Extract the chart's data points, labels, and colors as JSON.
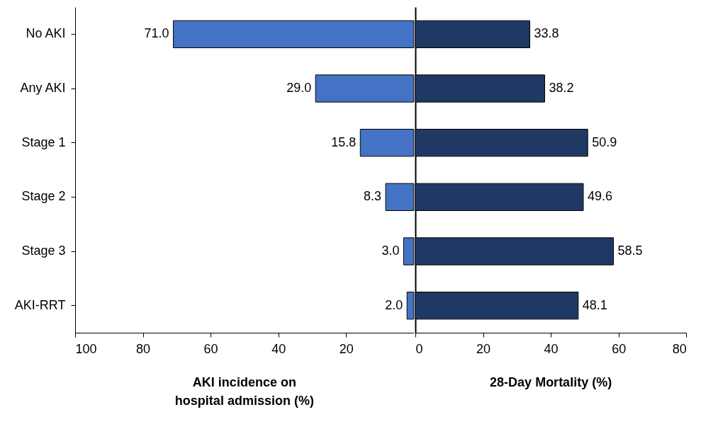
{
  "chart_data": [
    {
      "type": "bar",
      "orientation": "horizontal",
      "xlabel": "AKI incidence on hospital admission (%)",
      "categories": [
        "No AKI",
        "Any AKI",
        "Stage 1",
        "Stage 2",
        "Stage 3",
        "AKI-RRT"
      ],
      "series": [
        {
          "color": "#4472c4",
          "values": [
            71.0,
            29.0,
            15.8,
            8.3,
            3.0,
            2.0
          ],
          "value_labels": [
            "71.0",
            "29.0",
            "15.8",
            "8.3",
            "3.0",
            "2.0"
          ]
        }
      ],
      "xlim": [
        100,
        0
      ],
      "xticks": [
        100,
        80,
        60,
        40,
        20
      ],
      "grid": false
    },
    {
      "type": "bar",
      "orientation": "horizontal",
      "xlabel": "28-Day Mortality (%)",
      "categories": [
        null,
        null,
        null,
        null,
        null,
        null
      ],
      "series": [
        {
          "color": "#203864",
          "values": [
            33.8,
            38.2,
            50.9,
            49.6,
            58.5,
            48.1
          ],
          "value_labels": [
            "33.8",
            "38.2",
            "50.9",
            "49.6",
            "58.5",
            "48.1"
          ]
        }
      ],
      "xlim": [
        0,
        80
      ],
      "xticks": [
        0,
        20,
        40,
        60,
        80
      ],
      "grid": false
    }
  ]
}
